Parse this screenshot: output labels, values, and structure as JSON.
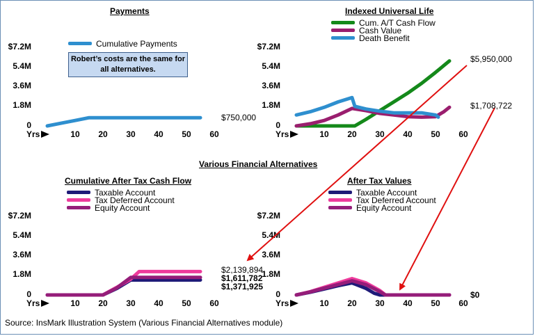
{
  "section_title": "Various Financial Alternatives",
  "source": "Source: InsMark Illustration System (Various Financial Alternatives module)",
  "note": "Robert’s costs are the same for all alternatives.",
  "yrs_label": "Yrs",
  "callouts": [
    "$5,950,000",
    "$1,708,722"
  ],
  "colors": {
    "payments": "#2e8fcf",
    "cum_cash_flow": "#14891a",
    "cash_value": "#9a1e6e",
    "death_benefit": "#2e8fcf",
    "taxable": "#1e1a78",
    "tax_deferred": "#ee3b9c",
    "equity": "#951d79",
    "arrow": "#e01010"
  },
  "chart_data": [
    {
      "type": "line",
      "title": "Payments",
      "y_ticks": [
        "$7.2M",
        "5.4M",
        "3.6M",
        "1.8M",
        "0"
      ],
      "x_ticks": [
        "10",
        "20",
        "30",
        "40",
        "50",
        "60"
      ],
      "ylim": [
        0,
        7.2
      ],
      "xlim": [
        0,
        60
      ],
      "series": [
        {
          "name": "Cumulative Payments",
          "x": [
            0,
            5,
            10,
            15,
            20,
            30,
            40,
            50,
            55
          ],
          "y": [
            0,
            0.25,
            0.5,
            0.75,
            0.75,
            0.75,
            0.75,
            0.75,
            0.75
          ]
        }
      ],
      "end_labels": [
        "$750,000"
      ]
    },
    {
      "type": "line",
      "title": "Indexed Universal Life",
      "y_ticks": [
        "$7.2M",
        "5.4M",
        "3.6M",
        "1.8M",
        "0"
      ],
      "x_ticks": [
        "10",
        "20",
        "30",
        "40",
        "50",
        "60"
      ],
      "ylim": [
        0,
        7.2
      ],
      "xlim": [
        0,
        60
      ],
      "series": [
        {
          "name": "Cum. A/T Cash Flow",
          "x": [
            0,
            5,
            10,
            15,
            20,
            21,
            25,
            30,
            35,
            40,
            45,
            50,
            55
          ],
          "y": [
            0,
            0,
            0,
            0,
            0,
            0,
            0.6,
            1.4,
            2.2,
            3.0,
            3.9,
            4.9,
            5.95
          ]
        },
        {
          "name": "Cash Value",
          "x": [
            0,
            5,
            10,
            15,
            20,
            25,
            30,
            35,
            40,
            45,
            50,
            53,
            55
          ],
          "y": [
            0,
            0.2,
            0.5,
            1.0,
            1.6,
            1.4,
            1.15,
            1.0,
            0.85,
            0.8,
            0.85,
            1.3,
            1.71
          ]
        },
        {
          "name": "Death Benefit",
          "x": [
            0,
            5,
            10,
            15,
            20,
            21,
            25,
            30,
            35,
            40,
            45,
            50,
            51
          ],
          "y": [
            1.0,
            1.3,
            1.7,
            2.2,
            2.6,
            1.8,
            1.55,
            1.35,
            1.2,
            1.2,
            1.2,
            1.0,
            0.8
          ]
        }
      ]
    },
    {
      "type": "line",
      "title": "Cumulative After Tax Cash Flow",
      "y_ticks": [
        "$7.2M",
        "5.4M",
        "3.6M",
        "1.8M",
        "0"
      ],
      "x_ticks": [
        "10",
        "20",
        "30",
        "40",
        "50",
        "60"
      ],
      "ylim": [
        0,
        7.2
      ],
      "xlim": [
        0,
        60
      ],
      "series": [
        {
          "name": "Taxable Account",
          "x": [
            0,
            5,
            10,
            15,
            20,
            25,
            30,
            35,
            40,
            45,
            50,
            55
          ],
          "y": [
            0,
            0,
            0,
            0,
            0,
            0.6,
            1.37,
            1.37,
            1.37,
            1.37,
            1.37,
            1.37
          ]
        },
        {
          "name": "Tax Deferred Account",
          "x": [
            0,
            5,
            10,
            15,
            20,
            25,
            30,
            33,
            35,
            40,
            45,
            50,
            55
          ],
          "y": [
            0,
            0,
            0,
            0,
            0,
            0.7,
            1.45,
            2.14,
            2.14,
            2.14,
            2.14,
            2.14,
            2.14
          ]
        },
        {
          "name": "Equity Account",
          "x": [
            0,
            5,
            10,
            15,
            20,
            25,
            30,
            35,
            40,
            45,
            50,
            55
          ],
          "y": [
            0,
            0,
            0,
            0,
            0,
            0.65,
            1.61,
            1.61,
            1.61,
            1.61,
            1.61,
            1.61
          ]
        }
      ],
      "end_labels": [
        "$2,139,894",
        "$1,611,782",
        "$1,371,925"
      ]
    },
    {
      "type": "line",
      "title": "After Tax Values",
      "y_ticks": [
        "$7.2M",
        "5.4M",
        "3.6M",
        "1.8M",
        "0"
      ],
      "x_ticks": [
        "10",
        "20",
        "30",
        "40",
        "50",
        "60"
      ],
      "ylim": [
        0,
        7.2
      ],
      "xlim": [
        0,
        60
      ],
      "series": [
        {
          "name": "Taxable Account",
          "x": [
            0,
            5,
            10,
            15,
            20,
            25,
            28,
            30,
            35,
            40,
            45,
            50,
            55
          ],
          "y": [
            0,
            0.25,
            0.55,
            0.85,
            1.1,
            0.6,
            0.15,
            0,
            0,
            0,
            0,
            0,
            0
          ]
        },
        {
          "name": "Tax Deferred Account",
          "x": [
            0,
            5,
            10,
            15,
            20,
            25,
            30,
            32,
            35,
            40,
            45,
            50,
            55
          ],
          "y": [
            0,
            0.3,
            0.7,
            1.1,
            1.5,
            1.1,
            0.4,
            0,
            0,
            0,
            0,
            0,
            0
          ]
        },
        {
          "name": "Equity Account",
          "x": [
            0,
            5,
            10,
            15,
            20,
            25,
            30,
            32,
            35,
            40,
            45,
            50,
            55
          ],
          "y": [
            0,
            0.28,
            0.62,
            0.95,
            1.3,
            0.95,
            0.3,
            0,
            0,
            0,
            0,
            0,
            0
          ]
        }
      ],
      "end_labels": [
        "$0"
      ]
    }
  ]
}
